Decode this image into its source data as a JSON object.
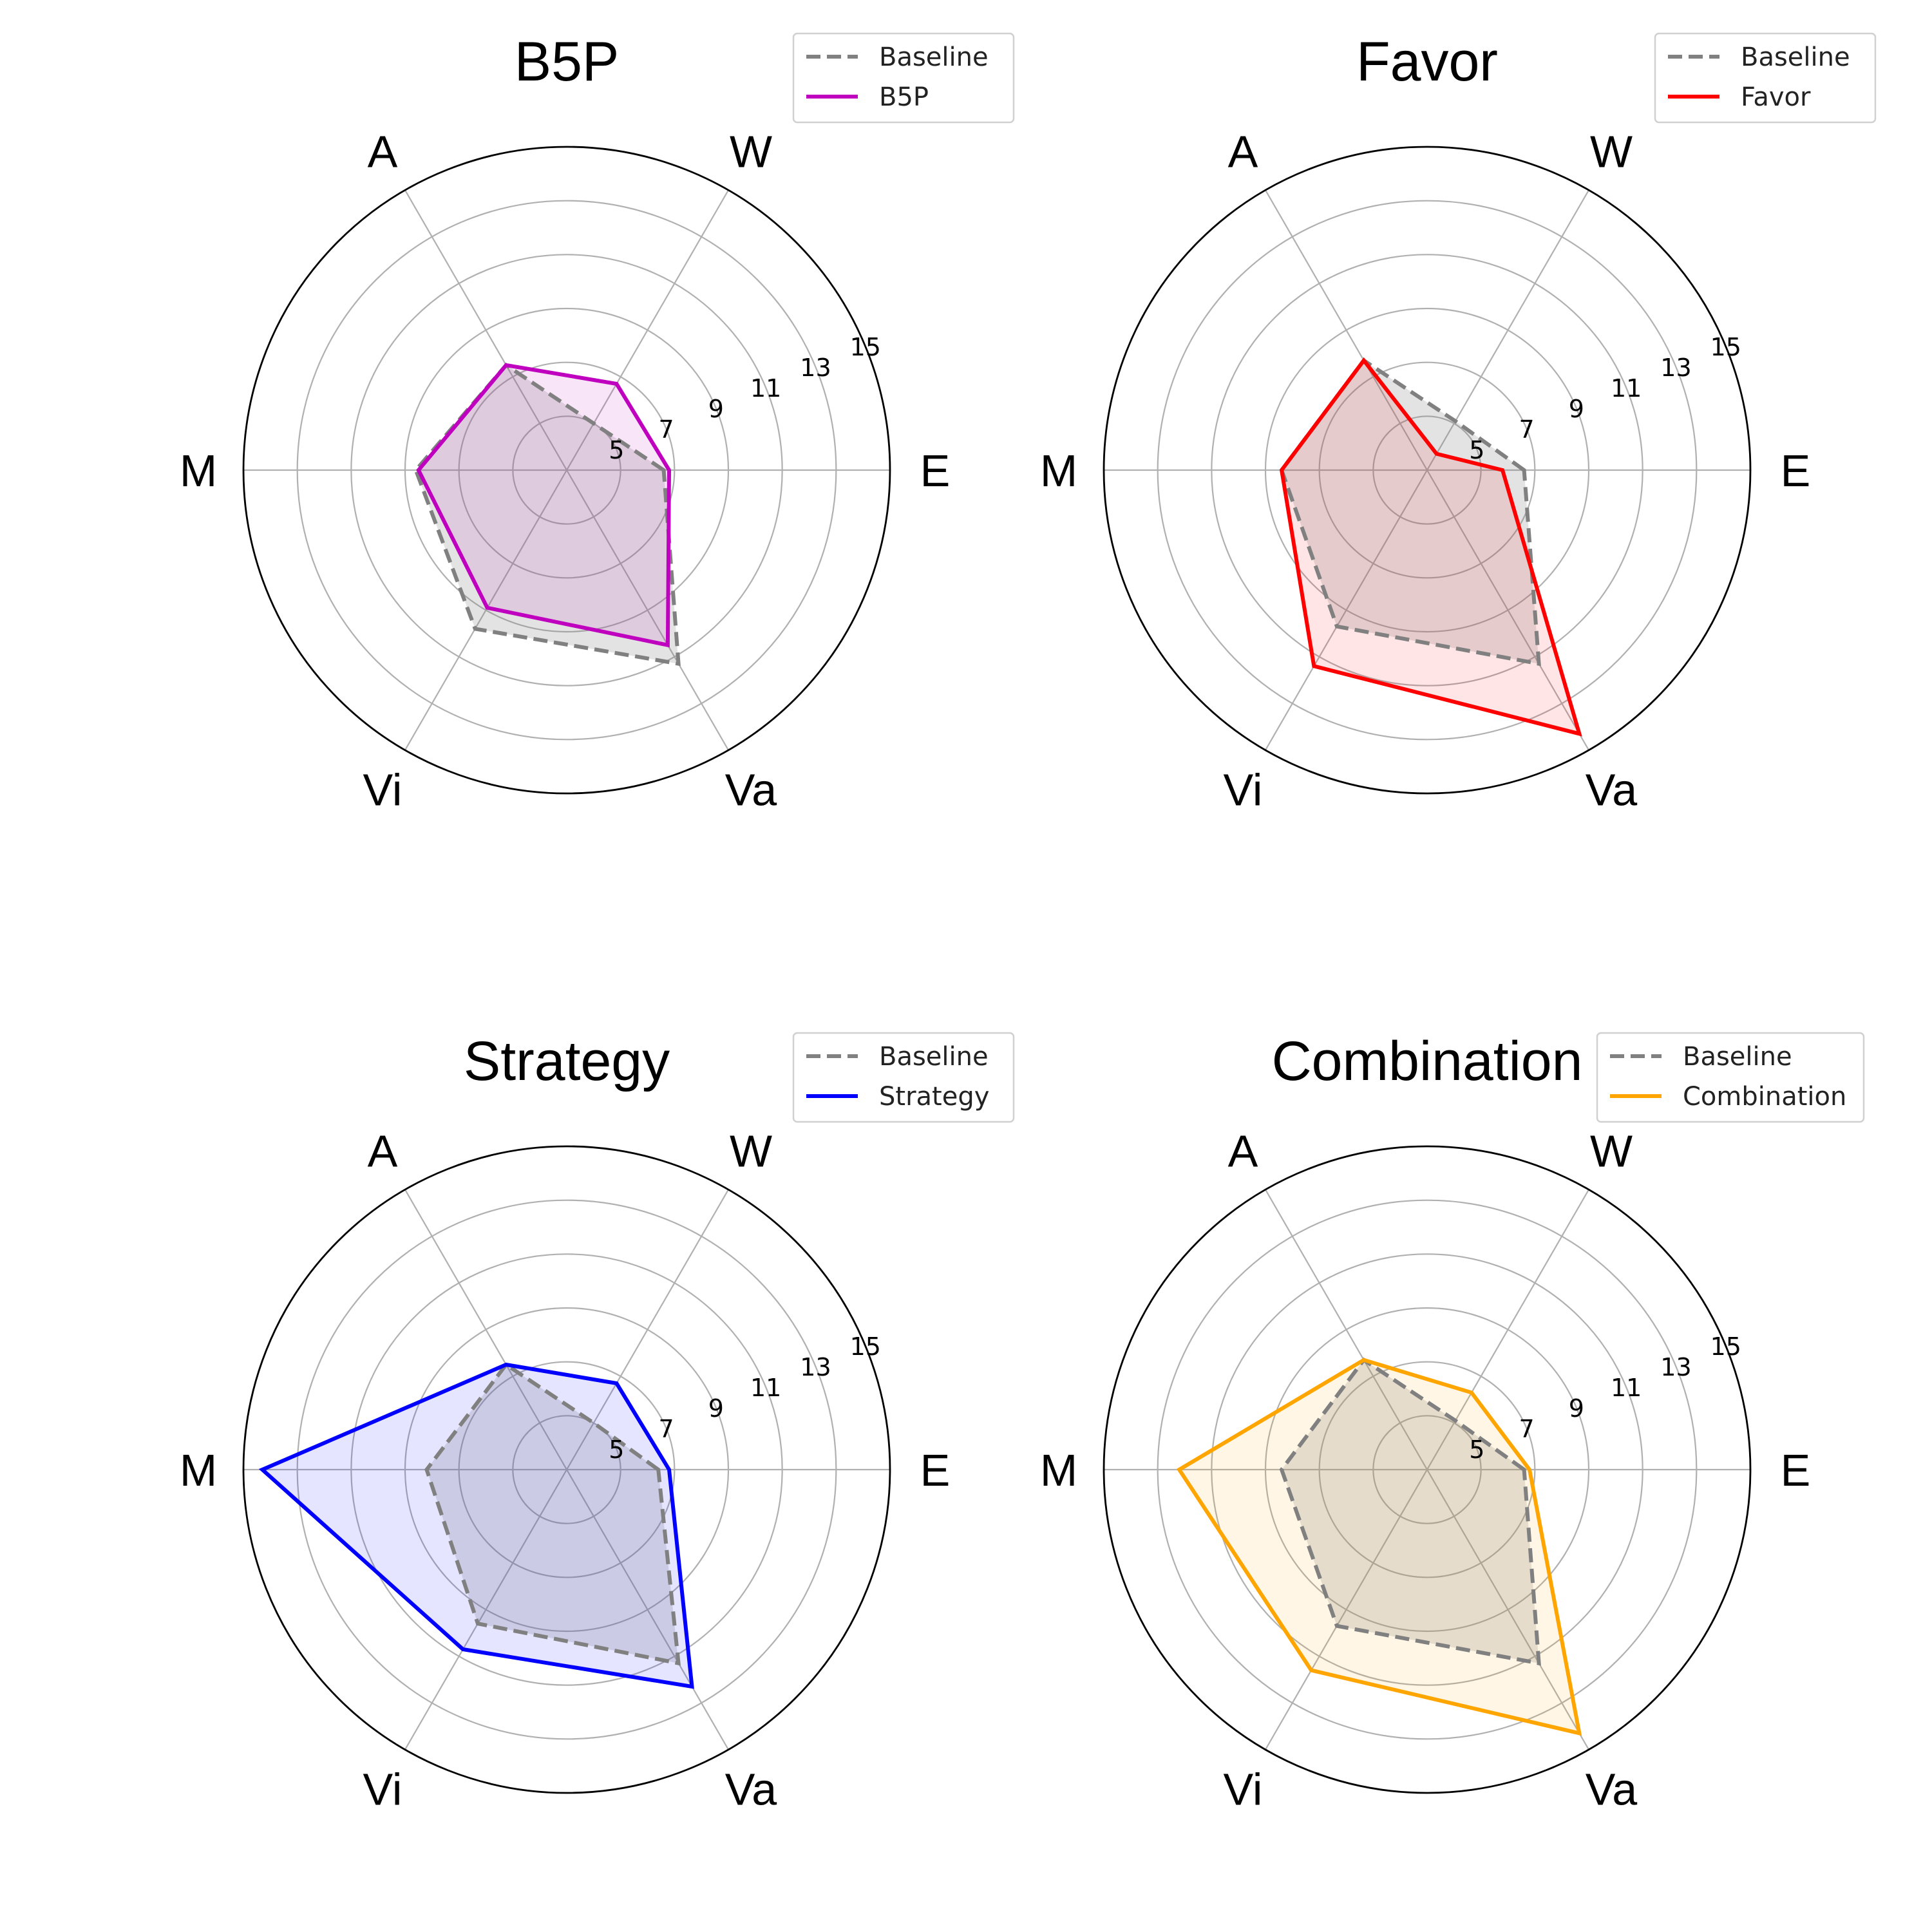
{
  "chart_data": [
    {
      "type": "radar",
      "title": "B5P",
      "axes": [
        "E",
        "W",
        "A",
        "M",
        "Vi",
        "Va"
      ],
      "rlim": [
        3,
        15
      ],
      "rticks": [
        5,
        7,
        9,
        11,
        13,
        15
      ],
      "legend": "top-right",
      "series": [
        {
          "name": "Baseline",
          "values": [
            6.6,
            5.0,
            7.5,
            8.6,
            9.8,
            11.3
          ],
          "color": "#808080",
          "style": "dashed"
        },
        {
          "name": "B5P",
          "values": [
            6.8,
            6.7,
            7.5,
            8.5,
            8.9,
            10.5
          ],
          "color": "#bf00bf",
          "style": "solid"
        }
      ]
    },
    {
      "type": "radar",
      "title": "Favor",
      "axes": [
        "E",
        "W",
        "A",
        "M",
        "Vi",
        "Va"
      ],
      "rlim": [
        3,
        15
      ],
      "rticks": [
        5,
        7,
        9,
        11,
        13,
        15
      ],
      "legend": "top-right",
      "series": [
        {
          "name": "Baseline",
          "values": [
            6.6,
            5.1,
            7.7,
            8.4,
            9.7,
            11.3
          ],
          "color": "#808080",
          "style": "dashed"
        },
        {
          "name": "Favor",
          "values": [
            5.8,
            3.7,
            7.7,
            8.4,
            11.4,
            14.3
          ],
          "color": "#ff0000",
          "style": "solid"
        }
      ]
    },
    {
      "type": "radar",
      "title": "Strategy",
      "axes": [
        "E",
        "W",
        "A",
        "M",
        "Vi",
        "Va"
      ],
      "rlim": [
        3,
        15
      ],
      "rticks": [
        5,
        7,
        9,
        11,
        13,
        15
      ],
      "legend": "top-right",
      "series": [
        {
          "name": "Baseline",
          "values": [
            6.4,
            5.0,
            7.5,
            8.2,
            9.6,
            11.3
          ],
          "color": "#808080",
          "style": "dashed"
        },
        {
          "name": "Strategy",
          "values": [
            6.8,
            6.7,
            7.5,
            14.3,
            10.7,
            12.3
          ],
          "color": "#0000ff",
          "style": "solid"
        }
      ]
    },
    {
      "type": "radar",
      "title": "Combination",
      "axes": [
        "E",
        "W",
        "A",
        "M",
        "Vi",
        "Va"
      ],
      "rlim": [
        3,
        15
      ],
      "rticks": [
        5,
        7,
        9,
        11,
        13,
        15
      ],
      "legend": "top-right",
      "series": [
        {
          "name": "Baseline",
          "values": [
            6.6,
            5.1,
            7.7,
            8.4,
            9.7,
            11.3
          ],
          "color": "#808080",
          "style": "dashed"
        },
        {
          "name": "Combination",
          "values": [
            6.8,
            6.3,
            7.7,
            12.2,
            11.6,
            14.3
          ],
          "color": "#ffa500",
          "style": "solid"
        }
      ]
    }
  ]
}
